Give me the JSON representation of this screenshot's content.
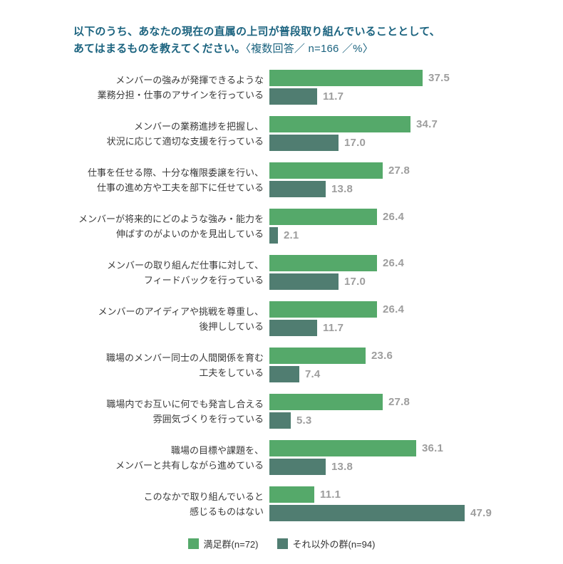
{
  "title": {
    "question_line1": "以下のうち、あなたの現在の直属の上司が普段取り組んでいることとして、",
    "question_line2": "あてはまるものを教えてください。",
    "note": "〈複数回答／ n=166 ／%〉"
  },
  "colors": {
    "title_text": "#1b637f",
    "bar_satisfied": "#55a96a",
    "bar_others": "#507d71",
    "value_text": "#9d9d9d",
    "category_text": "#3a3a3a"
  },
  "legend": {
    "items": [
      {
        "label": "満足群(n=72)",
        "color": "#55a96a"
      },
      {
        "label": "それ以外の群(n=94)",
        "color": "#507d71"
      }
    ]
  },
  "chart_data": {
    "type": "bar",
    "orientation": "horizontal",
    "unit": "%",
    "n_total": 166,
    "xlim": [
      0,
      50
    ],
    "value_decimals": 1,
    "categories": [
      "メンバーの強みが発揮できるような\n業務分担・仕事のアサインを行っている",
      "メンバーの業務進捗を把握し、\n状況に応じて適切な支援を行っている",
      "仕事を任せる際、十分な権限委譲を行い、\n仕事の進め方や工夫を部下に任せている",
      "メンバーが将来的にどのような強み・能力を\n伸ばすのがよいのかを見出している",
      "メンバーの取り組んだ仕事に対して、\nフィードバックを行っている",
      "メンバーのアイディアや挑戦を尊重し、\n後押ししている",
      "職場のメンバー同士の人間関係を育む\n工夫をしている",
      "職場内でお互いに何でも発言し合える\n雰囲気づくりを行っている",
      "職場の目標や課題を、\nメンバーと共有しながら進めている",
      "このなかで取り組んでいると\n感じるものはない"
    ],
    "series": [
      {
        "name": "満足群(n=72)",
        "color": "#55a96a",
        "values": [
          37.5,
          34.7,
          27.8,
          26.4,
          26.4,
          26.4,
          23.6,
          27.8,
          36.1,
          11.1
        ]
      },
      {
        "name": "それ以外の群(n=94)",
        "color": "#507d71",
        "values": [
          11.7,
          17.0,
          13.8,
          2.1,
          17.0,
          11.7,
          7.4,
          5.3,
          13.8,
          47.9
        ]
      }
    ]
  }
}
